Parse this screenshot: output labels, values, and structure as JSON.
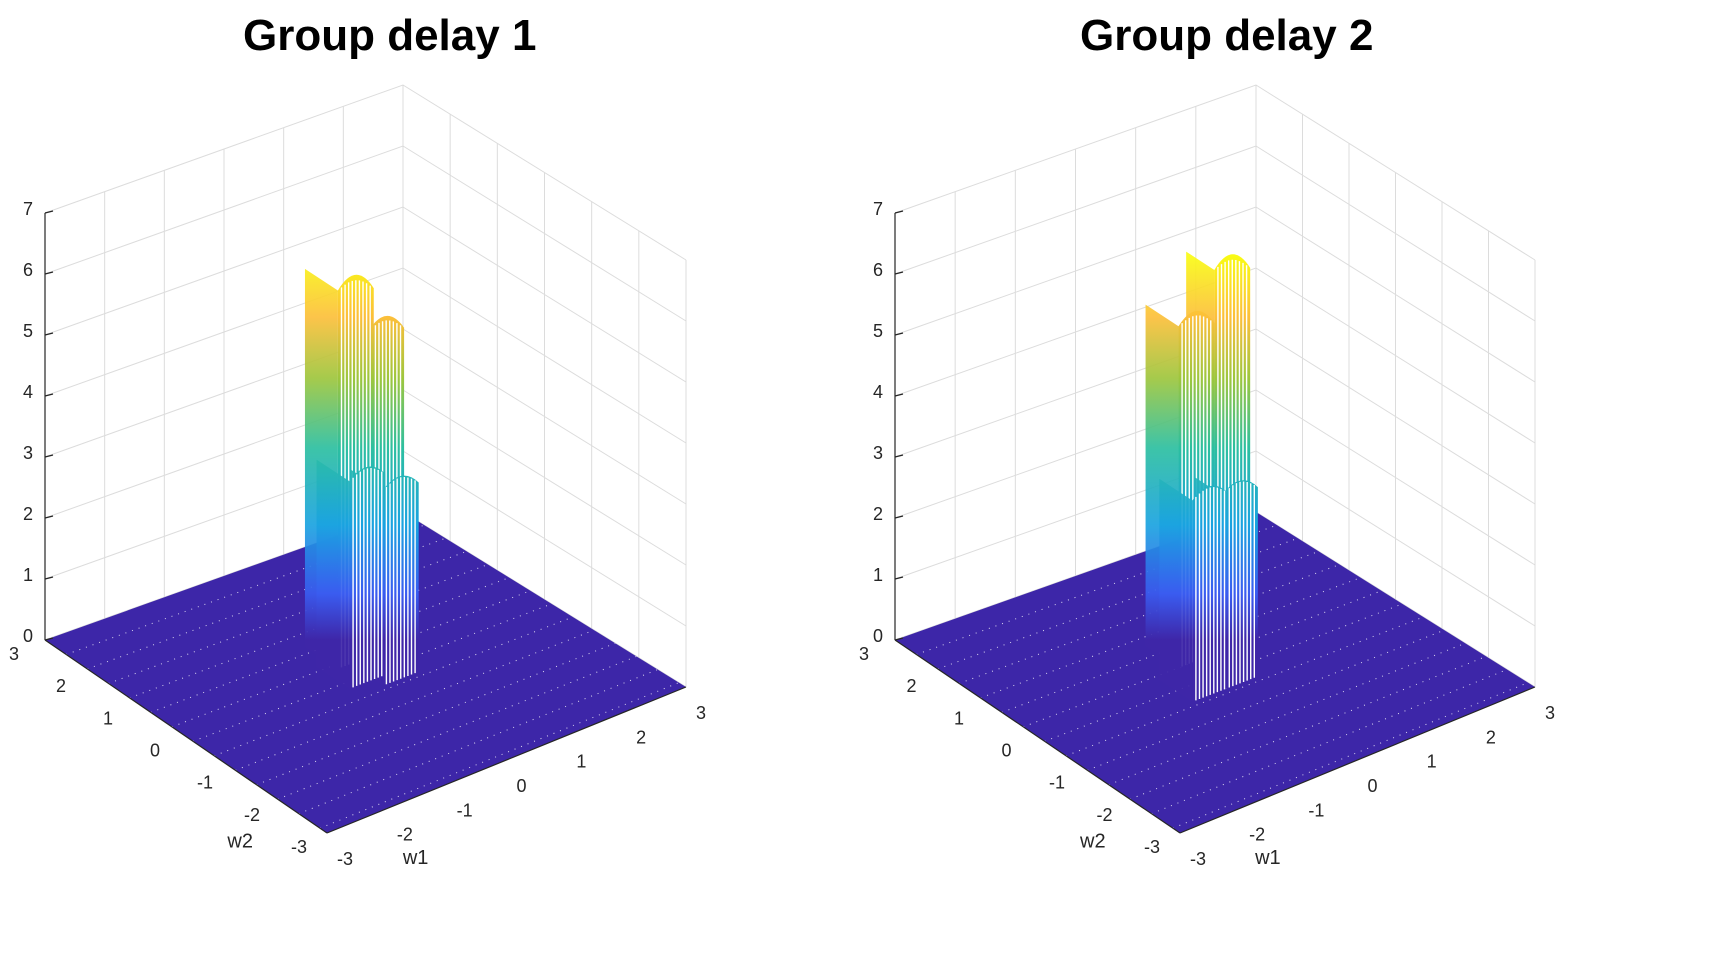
{
  "chart_data": [
    {
      "type": "surface3d",
      "title": "Group delay 1",
      "xlabel": "w1",
      "ylabel": "w2",
      "zlabel": "",
      "xlim": [
        -3,
        3
      ],
      "ylim": [
        -3,
        3
      ],
      "zlim": [
        0,
        7
      ],
      "x_ticks": [
        "-3",
        "-2",
        "-1",
        "0",
        "1",
        "2",
        "3"
      ],
      "y_ticks": [
        "-3",
        "-2",
        "-1",
        "0",
        "1",
        "2",
        "3"
      ],
      "z_ticks": [
        "0",
        "1",
        "2",
        "3",
        "4",
        "5",
        "6",
        "7"
      ],
      "colormap": "parula",
      "floor_color": "#3d26a8",
      "peaks": [
        {
          "name": "back-pillar-a",
          "w1": [
            -0.3,
            0.3
          ],
          "w2": [
            0.2,
            0.9
          ],
          "z_top": 6.2
        },
        {
          "name": "back-pillar-b",
          "w1": [
            0.05,
            0.65
          ],
          "w2": [
            0.0,
            0.6
          ],
          "z_top": 5.5
        },
        {
          "name": "front-pillar-a",
          "w1": [
            -0.5,
            0.1
          ],
          "w2": [
            -0.3,
            0.4
          ],
          "z_top": 3.4
        },
        {
          "name": "front-pillar-b",
          "w1": [
            -0.1,
            0.5
          ],
          "w2": [
            -0.5,
            0.2
          ],
          "z_top": 3.2
        }
      ]
    },
    {
      "type": "surface3d",
      "title": "Group delay 2",
      "xlabel": "w1",
      "ylabel": "w2",
      "zlabel": "",
      "xlim": [
        -3,
        3
      ],
      "ylim": [
        -3,
        3
      ],
      "zlim": [
        0,
        7
      ],
      "x_ticks": [
        "-3",
        "-2",
        "-1",
        "0",
        "1",
        "2",
        "3"
      ],
      "y_ticks": [
        "-3",
        "-2",
        "-1",
        "0",
        "1",
        "2",
        "3"
      ],
      "z_ticks": [
        "0",
        "1",
        "2",
        "3",
        "4",
        "5",
        "6",
        "7"
      ],
      "colormap": "parula",
      "floor_color": "#3d26a8",
      "peaks": [
        {
          "name": "back-pillar-a",
          "w1": [
            -0.4,
            0.2
          ],
          "w2": [
            0.3,
            1.0
          ],
          "z_top": 5.6
        },
        {
          "name": "back-pillar-b",
          "w1": [
            0.2,
            0.8
          ],
          "w2": [
            0.3,
            0.9
          ],
          "z_top": 6.3
        },
        {
          "name": "front-pillar-a",
          "w1": [
            -0.8,
            -0.2
          ],
          "w2": [
            -0.5,
            0.2
          ],
          "z_top": 3.3
        },
        {
          "name": "front-pillar-b",
          "w1": [
            -0.3,
            0.3
          ],
          "w2": [
            -0.5,
            0.1
          ],
          "z_top": 3.2
        }
      ]
    }
  ]
}
